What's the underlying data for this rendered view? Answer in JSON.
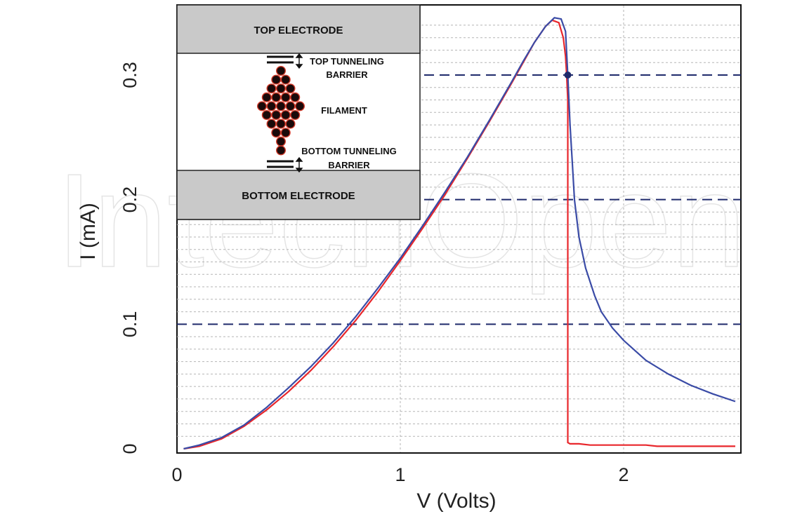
{
  "chart_data": {
    "type": "line",
    "xlabel": "V (Volts)",
    "ylabel": "I (mA)",
    "xlim": [
      0,
      2.5
    ],
    "ylim": [
      0,
      0.35
    ],
    "x_ticks": [
      "0",
      "1",
      "2"
    ],
    "y_ticks": [
      "0",
      "0.1",
      "0.2",
      "0.3"
    ],
    "grid": true,
    "watermark": "IntechOpen",
    "hlines": [
      0.1,
      0.2,
      0.3
    ],
    "marker_point": {
      "x": 1.75,
      "y": 0.3
    },
    "series": [
      {
        "color": "#e8262b",
        "x": [
          0.03,
          0.1,
          0.2,
          0.3,
          0.4,
          0.5,
          0.6,
          0.7,
          0.8,
          0.9,
          1.0,
          1.1,
          1.2,
          1.3,
          1.4,
          1.5,
          1.55,
          1.6,
          1.65,
          1.68,
          1.71,
          1.73,
          1.74,
          1.745,
          1.75,
          1.75,
          1.76,
          1.8,
          1.85,
          1.9,
          2.0,
          2.1,
          2.15,
          2.2,
          2.3,
          2.4,
          2.5
        ],
        "y": [
          0.0,
          0.002,
          0.008,
          0.018,
          0.031,
          0.046,
          0.063,
          0.082,
          0.103,
          0.126,
          0.151,
          0.177,
          0.204,
          0.233,
          0.263,
          0.294,
          0.31,
          0.326,
          0.339,
          0.344,
          0.342,
          0.33,
          0.315,
          0.3,
          0.28,
          0.005,
          0.004,
          0.004,
          0.003,
          0.003,
          0.003,
          0.003,
          0.002,
          0.002,
          0.002,
          0.002,
          0.002
        ]
      },
      {
        "color": "#3a4ba6",
        "x": [
          0.03,
          0.1,
          0.2,
          0.3,
          0.4,
          0.5,
          0.6,
          0.7,
          0.8,
          0.9,
          1.0,
          1.1,
          1.2,
          1.3,
          1.4,
          1.5,
          1.55,
          1.6,
          1.65,
          1.69,
          1.72,
          1.74,
          1.75,
          1.76,
          1.77,
          1.78,
          1.8,
          1.83,
          1.87,
          1.9,
          1.95,
          2.0,
          2.1,
          2.2,
          2.3,
          2.4,
          2.5
        ],
        "y": [
          0.0,
          0.003,
          0.009,
          0.019,
          0.033,
          0.049,
          0.066,
          0.085,
          0.106,
          0.129,
          0.153,
          0.179,
          0.206,
          0.234,
          0.264,
          0.295,
          0.311,
          0.326,
          0.339,
          0.346,
          0.345,
          0.335,
          0.3,
          0.26,
          0.23,
          0.2,
          0.17,
          0.145,
          0.123,
          0.11,
          0.097,
          0.087,
          0.071,
          0.06,
          0.051,
          0.044,
          0.038
        ]
      }
    ]
  },
  "inset": {
    "top_electrode": "TOP ELECTRODE",
    "top_barrier_line1": "TOP TUNNELING",
    "top_barrier_line2": "BARRIER",
    "filament": "FILAMENT",
    "bottom_barrier_line1": "BOTTOM TUNNELING",
    "bottom_barrier_line2": "BARRIER",
    "bottom_electrode": "BOTTOM ELECTRODE"
  }
}
